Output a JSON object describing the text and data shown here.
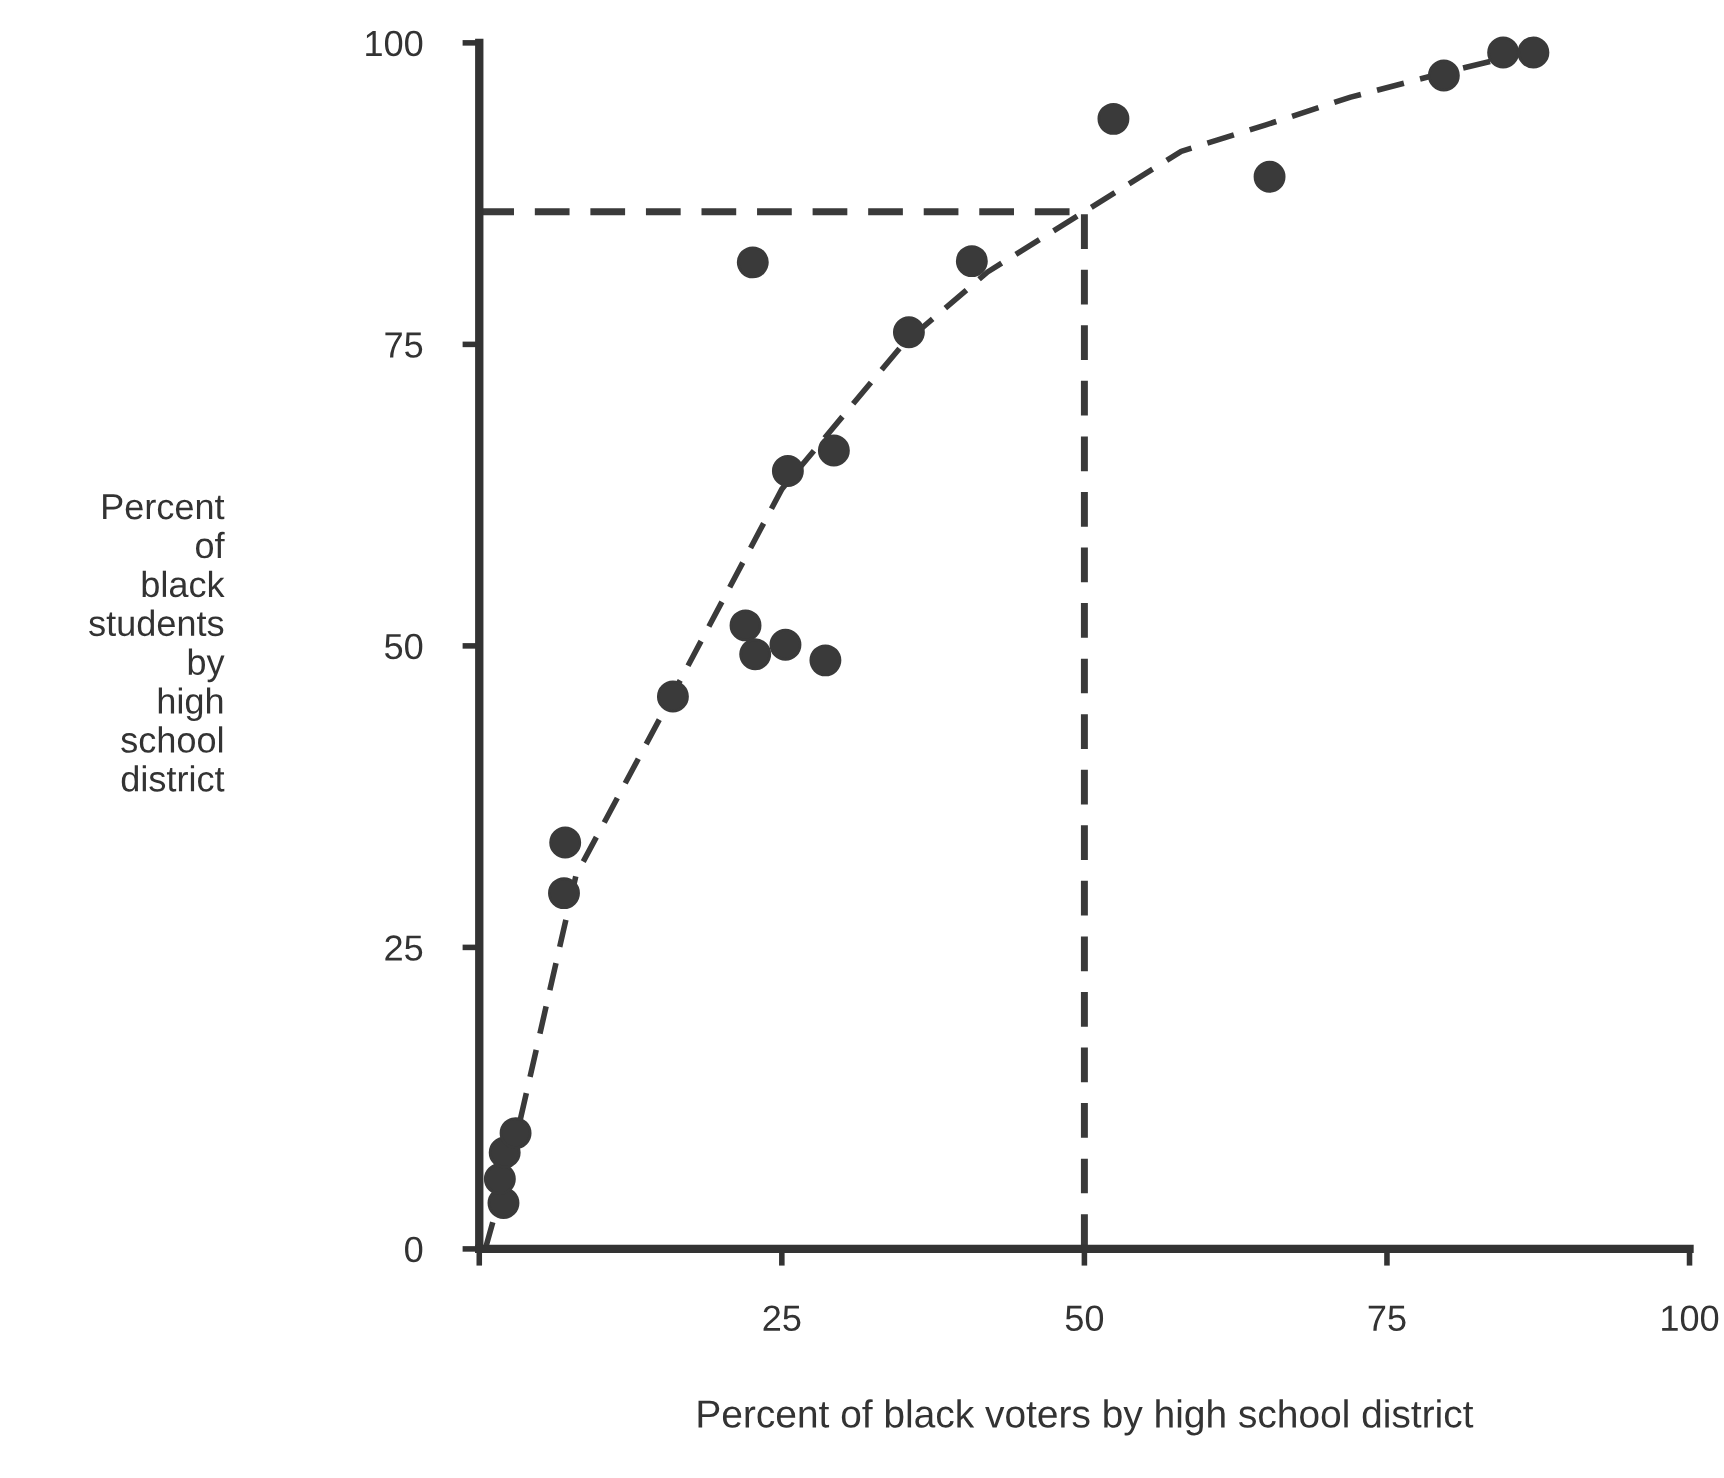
{
  "chart_data": {
    "type": "scatter",
    "xlabel": "Percent of black voters by high school district",
    "ylabel": "Percent\nof\nblack\nstudents\nby\nhigh\nschool\ndistrict",
    "xlim": [
      0,
      100
    ],
    "ylim": [
      0,
      100
    ],
    "xticks": [
      {
        "value": 0,
        "label": null
      },
      25,
      50,
      75,
      100
    ],
    "yticks": [
      0,
      25,
      50,
      75,
      100
    ],
    "grid": false,
    "series": [
      {
        "marker": "circle",
        "color": "#3a3a3a",
        "x": [
          2.0,
          1.7,
          2.1,
          3.0,
          7.1,
          7.0,
          16.0,
          22.0,
          22.8,
          25.3,
          28.6,
          22.6,
          25.5,
          29.3,
          35.5,
          40.7,
          52.4,
          65.3,
          79.7,
          84.6,
          87.1
        ],
        "values": [
          3.8,
          5.8,
          8.0,
          9.6,
          33.7,
          29.5,
          45.8,
          51.7,
          49.3,
          50.1,
          48.8,
          81.8,
          64.5,
          66.2,
          76.0,
          81.9,
          93.7,
          88.9,
          97.3,
          99.2,
          99.2
        ]
      },
      {
        "type": "line",
        "color": "#3a3a3a",
        "line_style": "dashed",
        "marker": "none",
        "x": [
          0.5,
          3,
          8,
          16,
          25,
          35,
          42,
          50,
          58,
          65,
          72,
          80,
          87
        ],
        "values": [
          0,
          9,
          31,
          46,
          63,
          75,
          81,
          86,
          91,
          93.2,
          95.5,
          97.6,
          99.3
        ]
      }
    ],
    "ref_lines": [
      {
        "axis": "y",
        "value": 86,
        "color": "#3a3a3a",
        "line_style": "dashed"
      },
      {
        "axis": "x",
        "value": 50,
        "color": "#3a3a3a",
        "line_style": "dashed"
      }
    ]
  }
}
